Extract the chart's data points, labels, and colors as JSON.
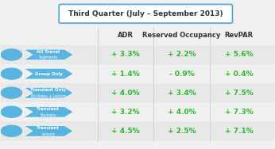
{
  "title": "Third Quarter (July – September 2013)",
  "col_headers": [
    "ADR",
    "Reserved Occupancy",
    "RevPAR"
  ],
  "rows": [
    {
      "label_line1": "All Travel",
      "label_line2": "Segments",
      "adr": "+ 3.3%",
      "occ": "+ 2.2%",
      "revpar": "+ 5.6%",
      "adr_pos": true,
      "occ_pos": true,
      "revpar_pos": true
    },
    {
      "label_line1": "Group Only",
      "label_line2": "",
      "adr": "+ 1.4%",
      "occ": "- 0.9%",
      "revpar": "+ 0.4%",
      "adr_pos": true,
      "occ_pos": false,
      "revpar_pos": true
    },
    {
      "label_line1": "Transient Only",
      "label_line2": "Business + Leisure",
      "adr": "+ 4.0%",
      "occ": "+ 3.4%",
      "revpar": "+ 7.5%",
      "adr_pos": true,
      "occ_pos": true,
      "revpar_pos": true
    },
    {
      "label_line1": "Transient",
      "label_line2": "Business",
      "adr": "+ 3.2%",
      "occ": "+ 4.0%",
      "revpar": "+ 7.3%",
      "adr_pos": true,
      "occ_pos": true,
      "revpar_pos": true
    },
    {
      "label_line1": "Transient",
      "label_line2": "Leisure",
      "adr": "+ 4.5%",
      "occ": "+ 2.5%",
      "revpar": "+ 7.1%",
      "adr_pos": true,
      "occ_pos": true,
      "revpar_pos": true
    }
  ],
  "bg_color": "#f0f0f0",
  "title_border_color": "#4da6d9",
  "positive_color": "#2db82d",
  "negative_color": "#2db82d",
  "chevron_color": "#5ab4e0",
  "sep_color": "#cccccc",
  "header_color": "#333333",
  "row_colors": [
    "#e8e8e8",
    "#f0f0f0",
    "#e8e8e8",
    "#f0f0f0",
    "#e8e8e8"
  ]
}
